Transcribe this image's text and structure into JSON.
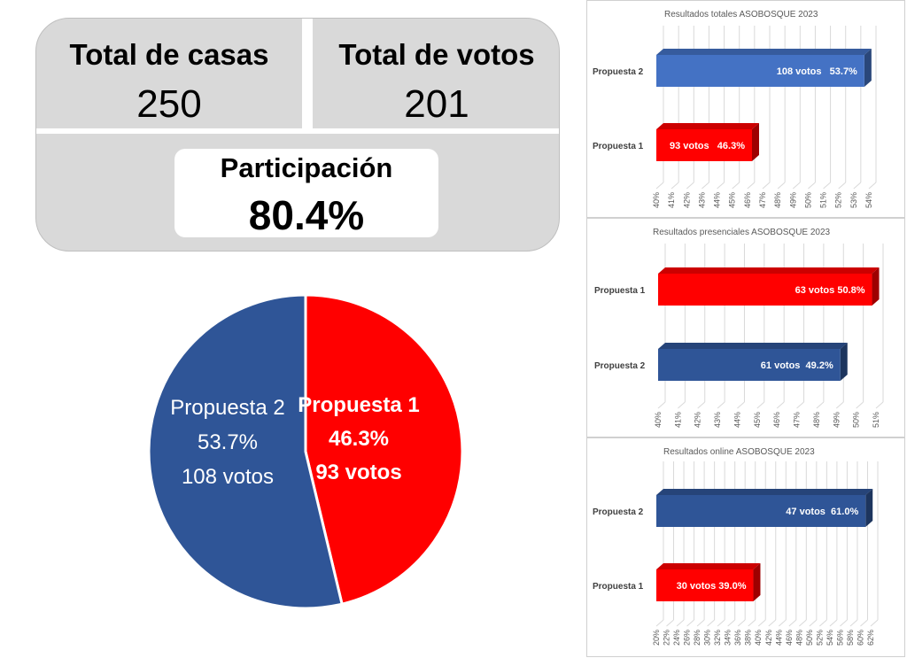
{
  "summary": {
    "casas_label": "Total de casas",
    "casas_value": "250",
    "votos_label": "Total de votos",
    "votos_value": "201",
    "participacion_label": "Participación",
    "participacion_value": "80.4%"
  },
  "colors": {
    "propuesta1": "#ff0000",
    "propuesta2_pie": "#2f5597",
    "propuesta2_bar_totales": "#4472c4",
    "propuesta2_bar": "#2f5597",
    "panel_bg": "#d9d9d9"
  },
  "chart_data": [
    {
      "type": "pie",
      "slices": [
        {
          "label": "Propuesta 1",
          "percent_label": "46.3%",
          "votes_label": "93 votos",
          "value": 93,
          "color": "#ff0000"
        },
        {
          "label": "Propuesta 2",
          "percent_label": "53.7%",
          "votes_label": "108 votos",
          "value": 108,
          "color": "#2f5597"
        }
      ]
    },
    {
      "type": "bar",
      "orientation": "horizontal",
      "title": "Resultados totales ASOBOSQUE 2023",
      "categories": [
        "Propuesta 2",
        "Propuesta 1"
      ],
      "values": [
        53.7,
        46.3
      ],
      "data_labels": [
        "108 votos   53.7%",
        "93 votos   46.3%"
      ],
      "colors": [
        "#4472c4",
        "#ff0000"
      ],
      "xlim": [
        40,
        54
      ],
      "ticks": [
        "40%",
        "41%",
        "42%",
        "43%",
        "44%",
        "45%",
        "46%",
        "47%",
        "48%",
        "49%",
        "50%",
        "51%",
        "52%",
        "53%",
        "54%"
      ],
      "grid": true
    },
    {
      "type": "bar",
      "orientation": "horizontal",
      "title": "Resultados presenciales ASOBOSQUE 2023",
      "categories": [
        "Propuesta 1",
        "Propuesta 2"
      ],
      "values": [
        50.8,
        49.2
      ],
      "data_labels": [
        "63 votos 50.8%",
        "61 votos  49.2%"
      ],
      "colors": [
        "#ff0000",
        "#2f5597"
      ],
      "xlim": [
        40,
        51
      ],
      "ticks": [
        "40%",
        "41%",
        "42%",
        "43%",
        "44%",
        "45%",
        "46%",
        "47%",
        "48%",
        "49%",
        "50%",
        "51%"
      ],
      "grid": true
    },
    {
      "type": "bar",
      "orientation": "horizontal",
      "title": "Resultados online ASOBOSQUE 2023",
      "categories": [
        "Propuesta 2",
        "Propuesta 1"
      ],
      "values": [
        61.0,
        39.0
      ],
      "data_labels": [
        "47 votos  61.0%",
        "30 votos 39.0%"
      ],
      "colors": [
        "#2f5597",
        "#ff0000"
      ],
      "xlim": [
        20,
        62
      ],
      "ticks": [
        "20%",
        "22%",
        "24%",
        "26%",
        "28%",
        "30%",
        "32%",
        "34%",
        "36%",
        "38%",
        "40%",
        "42%",
        "44%",
        "46%",
        "48%",
        "50%",
        "52%",
        "54%",
        "56%",
        "58%",
        "60%",
        "62%"
      ],
      "grid": true
    }
  ]
}
